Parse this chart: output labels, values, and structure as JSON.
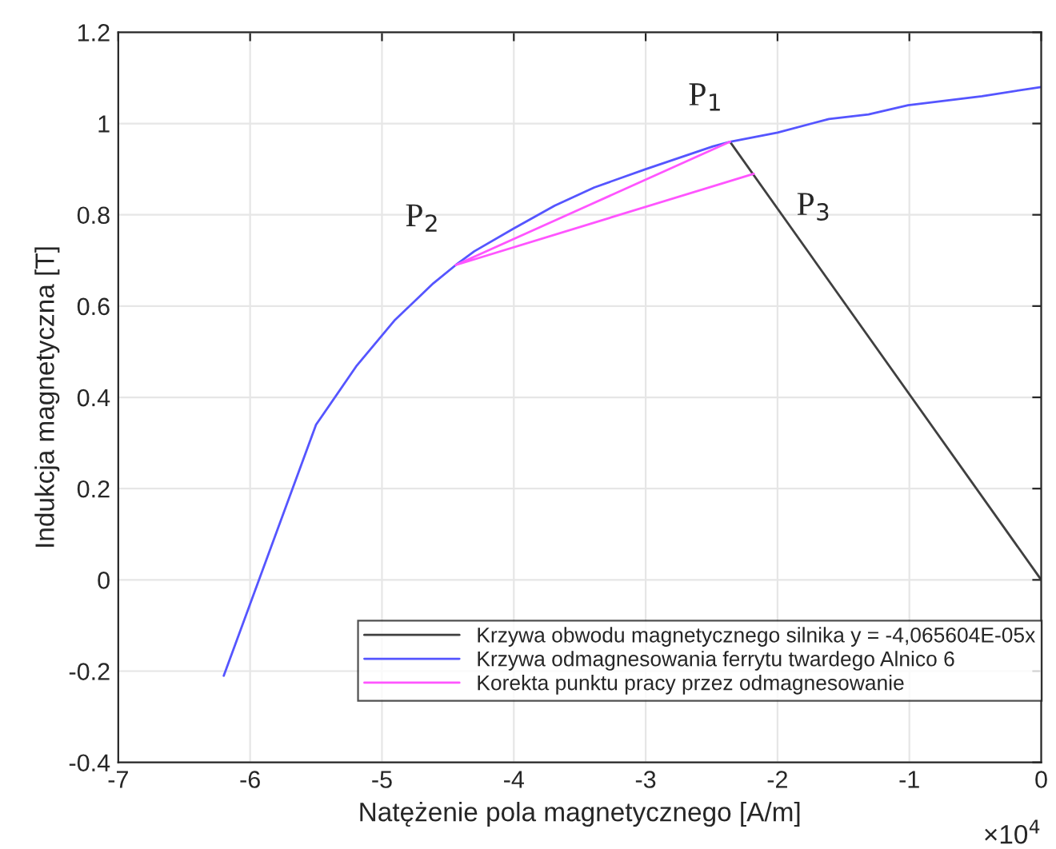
{
  "chart_data": {
    "type": "line",
    "xlabel": "Natężenie pola magnetycznego [A/m]",
    "ylabel": "Indukcja magnetyczna [T]",
    "xlim": [
      -7,
      0
    ],
    "xticks": [
      -7,
      -6,
      -5,
      -4,
      -3,
      -2,
      -1,
      0
    ],
    "ylim": [
      -0.4,
      1.2
    ],
    "yticks": [
      -0.4,
      -0.2,
      0,
      0.2,
      0.4,
      0.6,
      0.8,
      1,
      1.2
    ],
    "grid": true,
    "legend": "bottom right",
    "series": [
      {
        "name": "Krzywa obwodu magnetycznego silnika y = -4,065604E-05x",
        "color": "#404040",
        "x": [
          -2.36,
          0
        ],
        "values": [
          0.96,
          0
        ]
      },
      {
        "name": "Krzywa odmagnesowania ferrytu twardego Alnico 6",
        "color": "#5555ff",
        "x": [
          -6.2,
          -5.5,
          -5.19,
          -4.9,
          -4.61,
          -4.44,
          -4.3,
          -4.0,
          -3.69,
          -3.39,
          -3.0,
          -2.49,
          -2.36,
          -2.0,
          -1.61,
          -1.31,
          -1.01,
          -0.45,
          0
        ],
        "values": [
          -0.21,
          0.34,
          0.47,
          0.57,
          0.65,
          0.69,
          0.72,
          0.77,
          0.82,
          0.86,
          0.9,
          0.95,
          0.96,
          0.98,
          1.01,
          1.02,
          1.04,
          1.06,
          1.08
        ]
      },
      {
        "name": "Korekta punktu pracy przez odmagnesowanie",
        "color": "#ff55ff",
        "x": [
          -2.36,
          -4.44,
          -2.18
        ],
        "values": [
          0.96,
          0.69,
          0.89
        ]
      }
    ],
    "annotations": [
      {
        "text": "P$_{1}$",
        "x": -2.36,
        "y": 0.96
      },
      {
        "text": "P$_{2}$",
        "x": -4.44,
        "y": 0.69
      },
      {
        "text": "P$_{3}$",
        "x": -2.18,
        "y": 0.89
      },
      "×10$^{4}$"
    ]
  }
}
